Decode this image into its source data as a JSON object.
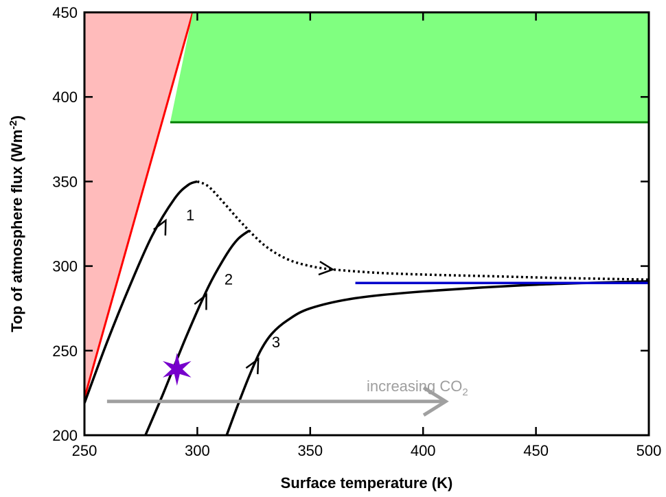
{
  "chart_data": {
    "type": "line",
    "title": "",
    "xlabel": "Surface temperature (K)",
    "ylabel_main": "Top of atmosphere flux (Wm",
    "ylabel_sup": "-2",
    "ylabel_close": ")",
    "xlim": [
      250,
      500
    ],
    "ylim": [
      200,
      450
    ],
    "xticks": [
      250,
      300,
      350,
      400,
      450,
      500
    ],
    "yticks": [
      200,
      250,
      300,
      350,
      400,
      450
    ],
    "grid": false,
    "regions": [
      {
        "id": "red-region",
        "color": "#ffbbbb",
        "edge_color": "#ff0000",
        "polygon": [
          [
            250,
            222
          ],
          [
            298,
            450
          ],
          [
            250,
            450
          ]
        ]
      },
      {
        "id": "green-region",
        "color": "#80ff80",
        "edge_color": "#007f00",
        "polygon": [
          [
            288,
            385
          ],
          [
            298,
            450
          ],
          [
            500,
            450
          ],
          [
            500,
            385
          ]
        ]
      }
    ],
    "series": [
      {
        "id": "curve-1",
        "label": "1",
        "color": "#000000",
        "style": "solid",
        "points": [
          [
            250,
            219
          ],
          [
            260,
            255
          ],
          [
            270,
            288
          ],
          [
            280,
            318
          ],
          [
            290,
            340
          ],
          [
            296,
            348
          ],
          [
            300,
            350
          ]
        ],
        "label_pos": [
          295,
          327
        ],
        "arrow_at": [
          286,
          327
        ]
      },
      {
        "id": "curve-1-dotted",
        "color": "#000000",
        "style": "dotted",
        "points": [
          [
            300,
            350
          ],
          [
            305,
            347
          ],
          [
            312,
            337
          ],
          [
            320,
            325
          ],
          [
            330,
            312
          ],
          [
            340,
            304
          ],
          [
            350,
            300
          ],
          [
            360,
            298
          ],
          [
            380,
            296
          ],
          [
            400,
            295
          ],
          [
            430,
            294
          ],
          [
            460,
            293
          ],
          [
            500,
            292
          ]
        ],
        "arrow_at": [
          360,
          298
        ]
      },
      {
        "id": "curve-2",
        "label": "2",
        "color": "#000000",
        "style": "solid",
        "points": [
          [
            277,
            200
          ],
          [
            285,
            225
          ],
          [
            295,
            258
          ],
          [
            305,
            288
          ],
          [
            313,
            307
          ],
          [
            318,
            316
          ],
          [
            323,
            321
          ]
        ],
        "label_pos": [
          312,
          289
        ],
        "arrow_at": [
          304,
          283
        ]
      },
      {
        "id": "curve-3",
        "label": "3",
        "color": "#000000",
        "style": "solid",
        "points": [
          [
            313,
            200
          ],
          [
            318,
            218
          ],
          [
            323,
            235
          ],
          [
            328,
            250
          ],
          [
            333,
            260
          ],
          [
            340,
            268
          ],
          [
            350,
            275
          ],
          [
            370,
            281
          ],
          [
            400,
            285
          ],
          [
            450,
            289
          ],
          [
            500,
            291
          ]
        ],
        "label_pos": [
          333,
          252
        ],
        "arrow_at": [
          327,
          245
        ]
      },
      {
        "id": "blue-line",
        "color": "#0000cc",
        "style": "solid",
        "points": [
          [
            370,
            290
          ],
          [
            500,
            290
          ]
        ]
      }
    ],
    "marker": {
      "id": "star-marker",
      "x": 291,
      "y": 239,
      "color": "#7700cc"
    },
    "annotation": {
      "text_main": "increasing CO",
      "text_sub": "2",
      "text_x": 375,
      "text_y": 226,
      "arrow_from": [
        260,
        220
      ],
      "arrow_to": [
        410,
        220
      ],
      "color": "#a0a0a0"
    }
  }
}
